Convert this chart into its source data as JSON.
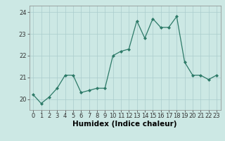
{
  "x": [
    0,
    1,
    2,
    3,
    4,
    5,
    6,
    7,
    8,
    9,
    10,
    11,
    12,
    13,
    14,
    15,
    16,
    17,
    18,
    19,
    20,
    21,
    22,
    23
  ],
  "y": [
    20.2,
    19.8,
    20.1,
    20.5,
    21.1,
    21.1,
    20.3,
    20.4,
    20.5,
    20.5,
    22.0,
    22.2,
    22.3,
    23.6,
    22.8,
    23.7,
    23.3,
    23.3,
    23.8,
    21.7,
    21.1,
    21.1,
    20.9,
    21.1
  ],
  "line_color": "#2d7a68",
  "marker_color": "#2d7a68",
  "bg_color": "#cce8e4",
  "grid_color": "#aacccc",
  "xlabel": "Humidex (Indice chaleur)",
  "ylim": [
    19.5,
    24.3
  ],
  "xlim": [
    -0.5,
    23.5
  ],
  "yticks": [
    20,
    21,
    22,
    23,
    24
  ],
  "xticks": [
    0,
    1,
    2,
    3,
    4,
    5,
    6,
    7,
    8,
    9,
    10,
    11,
    12,
    13,
    14,
    15,
    16,
    17,
    18,
    19,
    20,
    21,
    22,
    23
  ],
  "tick_fontsize": 6.0,
  "xlabel_fontsize": 7.5
}
